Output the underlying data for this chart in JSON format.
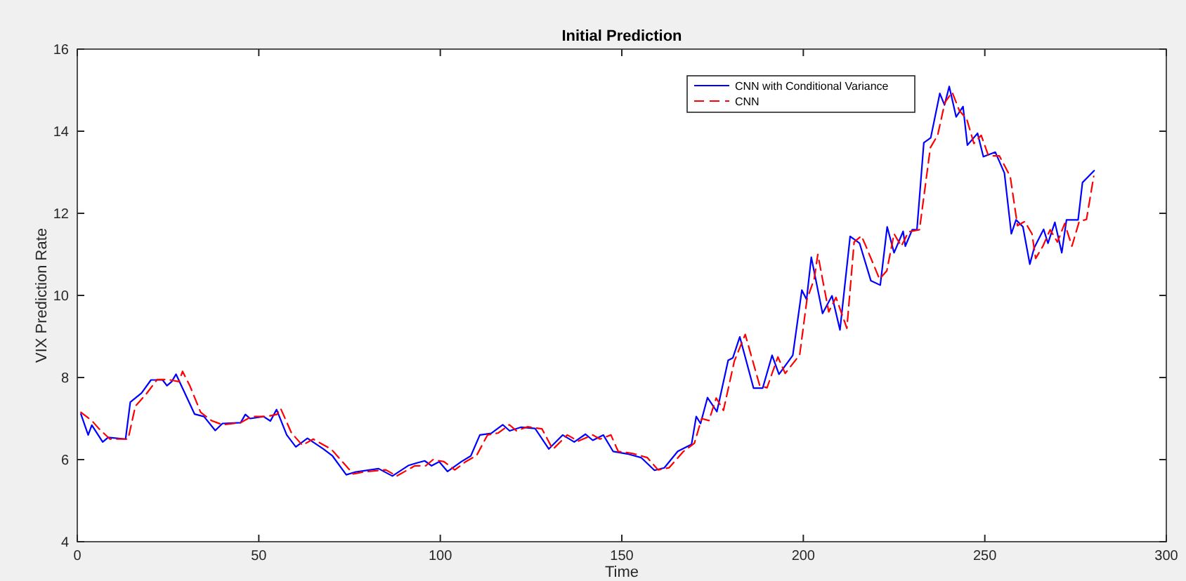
{
  "chart_data": {
    "type": "line",
    "title": "Initial Prediction",
    "xlabel": "Time",
    "ylabel": "VIX Prediction Rate",
    "xlim": [
      0,
      300
    ],
    "xticks": [
      0,
      50,
      100,
      150,
      200,
      250,
      300
    ],
    "ylim": [
      4,
      16
    ],
    "yticks": [
      4,
      6,
      8,
      10,
      12,
      14,
      16
    ],
    "legend": "top right",
    "series": [
      {
        "name": "CNN with Conditional Variance",
        "color": "#0000ff",
        "line_style": "solid",
        "x": [
          1,
          3,
          4,
          7,
          8.5,
          13.3,
          14.6,
          17.7,
          20.3,
          23.5,
          24.7,
          26,
          27.2,
          29.2,
          32.3,
          34.9,
          38,
          40,
          45,
          46.3,
          47.6,
          51.3,
          53.2,
          54.9,
          57.7,
          60.2,
          63.4,
          67.8,
          70.3,
          74.1,
          76.7,
          83,
          86.8,
          91.3,
          93.2,
          95.7,
          97.6,
          99.7,
          102,
          105.8,
          108.4,
          110.9,
          114,
          117.2,
          119.1,
          122.3,
          126.1,
          129.9,
          133.7,
          136.9,
          140,
          142,
          144.9,
          147.6,
          151.5,
          155.3,
          159,
          161.7,
          165.4,
          169.2,
          170.5,
          171.7,
          173.6,
          176.2,
          179.3,
          180.6,
          182.5,
          186.3,
          188.8,
          191.4,
          193.3,
          197.1,
          199.6,
          200.9,
          202.2,
          205.3,
          207.9,
          210.1,
          212.9,
          215.5,
          218.6,
          221.2,
          223.1,
          225,
          227.5,
          228.1,
          230,
          231.3,
          233.2,
          235.1,
          237.6,
          238.9,
          240.2,
          242.1,
          244,
          245.2,
          248,
          249.6,
          252.9,
          255.4,
          257.3,
          258.6,
          260.5,
          262.4,
          263.6,
          266.2,
          267.4,
          269.3,
          271.2,
          272.5,
          275.7,
          276.9,
          280.1
        ],
        "values": [
          7.11,
          6.6,
          6.84,
          6.43,
          6.54,
          6.5,
          7.4,
          7.62,
          7.94,
          7.94,
          7.8,
          7.9,
          8.08,
          7.7,
          7.11,
          7.05,
          6.71,
          6.88,
          6.9,
          7.1,
          7.0,
          7.05,
          6.94,
          7.22,
          6.6,
          6.31,
          6.52,
          6.26,
          6.09,
          5.63,
          5.7,
          5.78,
          5.6,
          5.86,
          5.91,
          5.97,
          5.85,
          5.95,
          5.71,
          5.95,
          6.09,
          6.6,
          6.64,
          6.85,
          6.7,
          6.79,
          6.76,
          6.26,
          6.6,
          6.43,
          6.62,
          6.47,
          6.6,
          6.2,
          6.14,
          6.05,
          5.74,
          5.8,
          6.2,
          6.37,
          7.05,
          6.88,
          7.51,
          7.17,
          8.42,
          8.48,
          8.99,
          7.74,
          7.74,
          8.54,
          8.08,
          8.54,
          10.13,
          9.9,
          10.93,
          9.56,
          9.99,
          9.16,
          11.44,
          11.27,
          10.36,
          10.25,
          11.67,
          11.04,
          11.56,
          11.2,
          11.6,
          11.6,
          13.72,
          13.84,
          14.92,
          14.64,
          15.09,
          14.35,
          14.6,
          13.66,
          13.95,
          13.38,
          13.49,
          12.98,
          11.5,
          11.84,
          11.67,
          10.76,
          11.16,
          11.61,
          11.27,
          11.78,
          11.04,
          11.84,
          11.84,
          12.75,
          13.04
        ]
      },
      {
        "name": "CNN",
        "color": "#ff0000",
        "line_style": "dashed",
        "x": [
          1,
          4,
          6,
          9,
          14,
          16,
          19,
          22,
          25,
          28,
          29,
          31,
          34,
          37,
          40,
          45,
          48,
          52,
          55,
          56,
          59,
          62,
          65,
          70,
          72,
          76,
          79,
          85,
          88,
          93,
          96,
          98,
          101,
          104,
          107,
          110,
          113,
          116,
          119,
          121,
          124,
          128,
          131,
          135,
          138,
          142,
          144,
          147,
          149,
          153,
          157,
          160,
          163,
          167,
          170,
          172,
          174,
          176,
          178,
          181,
          184,
          188,
          190,
          193,
          195,
          199,
          201,
          203,
          204,
          207,
          209,
          212,
          214,
          216,
          217,
          221,
          223,
          225,
          227,
          229,
          232,
          235,
          237,
          239,
          241,
          243,
          245,
          247,
          249,
          251,
          254,
          257,
          259,
          261,
          263,
          264,
          266,
          268,
          270,
          272,
          274,
          276,
          278,
          280
        ],
        "values": [
          7.15,
          6.95,
          6.75,
          6.5,
          6.5,
          7.3,
          7.6,
          7.95,
          7.95,
          7.9,
          8.15,
          7.8,
          7.15,
          6.95,
          6.85,
          6.9,
          7.05,
          7.05,
          7.1,
          7.25,
          6.65,
          6.35,
          6.5,
          6.25,
          6.05,
          5.65,
          5.7,
          5.75,
          5.6,
          5.85,
          5.85,
          6.0,
          5.95,
          5.75,
          5.95,
          6.1,
          6.6,
          6.65,
          6.85,
          6.7,
          6.8,
          6.75,
          6.25,
          6.6,
          6.45,
          6.6,
          6.5,
          6.6,
          6.2,
          6.15,
          6.05,
          5.75,
          5.8,
          6.2,
          6.4,
          7.0,
          6.95,
          7.5,
          7.2,
          8.4,
          9.05,
          7.8,
          7.75,
          8.5,
          8.1,
          8.55,
          9.9,
          10.4,
          11.0,
          9.6,
          9.95,
          9.2,
          11.3,
          11.45,
          11.25,
          10.4,
          10.6,
          11.5,
          11.2,
          11.55,
          11.6,
          13.6,
          13.9,
          14.7,
          14.95,
          14.5,
          14.3,
          13.7,
          13.9,
          13.4,
          13.4,
          12.9,
          11.7,
          11.8,
          11.5,
          10.9,
          11.2,
          11.6,
          11.3,
          11.75,
          11.2,
          11.8,
          11.85,
          12.9
        ]
      }
    ]
  }
}
